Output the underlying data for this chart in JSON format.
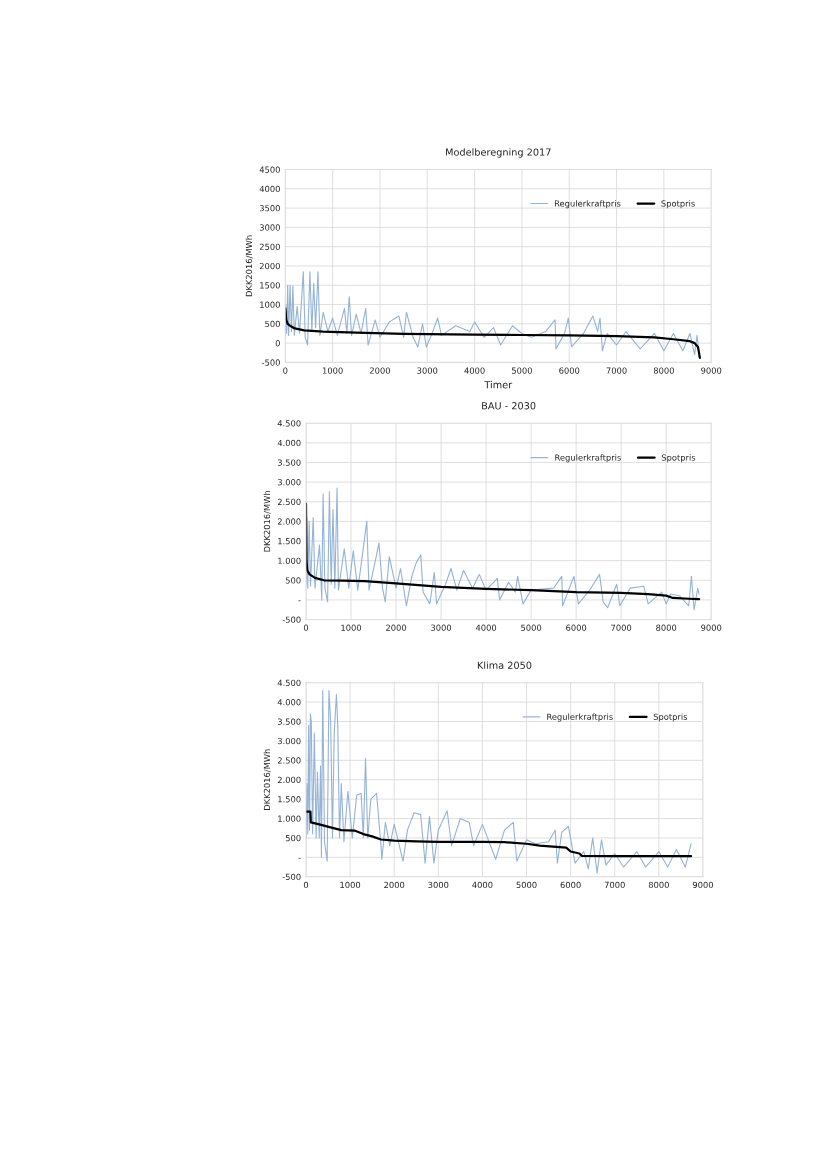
{
  "chart_data": [
    {
      "type": "line",
      "title": "Modelberegning 2017",
      "xlabel": "Timer",
      "ylabel": "DKK2016/MWh",
      "xlim": [
        0,
        9000
      ],
      "xticks": [
        0,
        1000,
        2000,
        3000,
        4000,
        5000,
        6000,
        7000,
        8000,
        9000
      ],
      "ylim": [
        -500,
        4500
      ],
      "yticks": [
        -500,
        0,
        500,
        1000,
        1500,
        2000,
        2500,
        3000,
        3500,
        4000,
        4500
      ],
      "grid": true,
      "legend": "top right",
      "series": [
        {
          "name": "Regulerkraftpris",
          "color": "#95b3d7",
          "x": [
            0,
            10,
            30,
            50,
            70,
            100,
            130,
            160,
            190,
            250,
            300,
            380,
            420,
            470,
            520,
            560,
            600,
            640,
            690,
            730,
            800,
            900,
            1000,
            1100,
            1250,
            1300,
            1350,
            1400,
            1500,
            1600,
            1700,
            1750,
            1900,
            2000,
            2200,
            2400,
            2500,
            2560,
            2700,
            2800,
            2900,
            2980,
            3100,
            3220,
            3300,
            3600,
            3900,
            4000,
            4200,
            4400,
            4550,
            4800,
            5000,
            5200,
            5500,
            5700,
            5720,
            5900,
            5980,
            6050,
            6300,
            6500,
            6600,
            6650,
            6700,
            6800,
            7000,
            7200,
            7500,
            7800,
            8000,
            8200,
            8400,
            8550,
            8650,
            8700,
            8750
          ],
          "values": [
            200,
            1000,
            250,
            1500,
            200,
            1500,
            300,
            1480,
            200,
            950,
            250,
            1850,
            150,
            -50,
            1850,
            300,
            1550,
            400,
            1850,
            200,
            800,
            300,
            650,
            200,
            900,
            250,
            1200,
            200,
            750,
            250,
            900,
            -50,
            600,
            150,
            550,
            700,
            150,
            800,
            150,
            -100,
            500,
            -100,
            250,
            650,
            200,
            450,
            300,
            550,
            150,
            400,
            -50,
            450,
            250,
            150,
            300,
            600,
            -150,
            250,
            650,
            -100,
            250,
            700,
            300,
            650,
            -200,
            250,
            -50,
            300,
            -150,
            250,
            -200,
            250,
            -200,
            250,
            -300,
            200,
            -350
          ]
        },
        {
          "name": "Spotpris",
          "color": "#000000",
          "x": [
            0,
            20,
            50,
            100,
            200,
            400,
            800,
            1500,
            2500,
            4000,
            5000,
            6000,
            7000,
            7800,
            8200,
            8550,
            8650,
            8720,
            8760
          ],
          "values": [
            900,
            600,
            500,
            450,
            380,
            330,
            300,
            270,
            240,
            220,
            210,
            200,
            180,
            150,
            100,
            50,
            0,
            -100,
            -380
          ]
        }
      ]
    },
    {
      "type": "line",
      "title": "BAU - 2030",
      "ylabel": "DKK2016/MWh",
      "xlim": [
        0,
        9000
      ],
      "xticks": [
        0,
        1000,
        2000,
        3000,
        4000,
        5000,
        6000,
        7000,
        8000,
        9000
      ],
      "ylim": [
        -500,
        4500
      ],
      "yticks": [
        -500,
        {
          "value": 0,
          "label": "-"
        },
        500,
        {
          "value": 1000,
          "label": "1.000"
        },
        {
          "value": 1500,
          "label": "1.500"
        },
        {
          "value": 2000,
          "label": "2.000"
        },
        {
          "value": 2500,
          "label": "2.500"
        },
        {
          "value": 3000,
          "label": "3.000"
        },
        {
          "value": 3500,
          "label": "3.500"
        },
        {
          "value": 4000,
          "label": "4.000"
        },
        {
          "value": 4500,
          "label": "4.500"
        }
      ],
      "grid": true,
      "legend": "top right",
      "series": [
        {
          "name": "Regulerkraftpris",
          "color": "#95b3d7",
          "x": [
            0,
            20,
            40,
            70,
            100,
            160,
            200,
            300,
            350,
            380,
            420,
            480,
            520,
            560,
            600,
            640,
            690,
            720,
            850,
            950,
            1050,
            1150,
            1270,
            1350,
            1400,
            1550,
            1620,
            1700,
            1760,
            1850,
            2000,
            2100,
            2230,
            2350,
            2450,
            2550,
            2600,
            2750,
            2850,
            2900,
            3100,
            3220,
            3350,
            3500,
            3700,
            3850,
            4000,
            4250,
            4300,
            4500,
            4650,
            4700,
            4820,
            5000,
            5500,
            5680,
            5700,
            5950,
            6050,
            6300,
            6520,
            6600,
            6700,
            6900,
            6970,
            7200,
            7500,
            7600,
            7900,
            8000,
            8100,
            8300,
            8500,
            8560,
            8620,
            8700,
            8730
          ],
          "values": [
            400,
            2100,
            300,
            2000,
            350,
            2100,
            300,
            1400,
            0,
            2700,
            300,
            -50,
            2750,
            400,
            2300,
            300,
            2850,
            250,
            1300,
            300,
            1250,
            250,
            1300,
            2000,
            250,
            1050,
            1450,
            300,
            -50,
            1100,
            300,
            800,
            -150,
            600,
            950,
            1150,
            200,
            -100,
            700,
            -100,
            400,
            800,
            250,
            750,
            300,
            650,
            250,
            550,
            0,
            450,
            200,
            600,
            -100,
            250,
            300,
            600,
            -150,
            600,
            -100,
            250,
            650,
            -50,
            -200,
            400,
            -150,
            300,
            350,
            -100,
            200,
            -100,
            150,
            100,
            -150,
            600,
            -250,
            300,
            150
          ]
        },
        {
          "name": "Spotpris",
          "color": "#000000",
          "x": [
            0,
            10,
            30,
            80,
            200,
            400,
            800,
            1300,
            2000,
            3000,
            4000,
            5000,
            6000,
            7000,
            7600,
            8000,
            8150,
            8500,
            8730
          ],
          "values": [
            2450,
            1000,
            750,
            650,
            560,
            500,
            490,
            480,
            420,
            330,
            280,
            250,
            200,
            180,
            150,
            110,
            50,
            30,
            20
          ]
        }
      ]
    },
    {
      "type": "line",
      "title": "Klima 2050",
      "ylabel": "DKK2016/MWh",
      "xlim": [
        0,
        9000
      ],
      "xticks": [
        0,
        1000,
        2000,
        3000,
        4000,
        5000,
        6000,
        7000,
        8000,
        9000
      ],
      "ylim": [
        -500,
        4500
      ],
      "yticks": [
        -500,
        {
          "value": 0,
          "label": "-"
        },
        500,
        {
          "value": 1000,
          "label": "1.000"
        },
        {
          "value": 1500,
          "label": "1.500"
        },
        {
          "value": 2000,
          "label": "2.000"
        },
        {
          "value": 2500,
          "label": "2.500"
        },
        {
          "value": 3000,
          "label": "3.000"
        },
        {
          "value": 3500,
          "label": "3.500"
        },
        {
          "value": 4000,
          "label": "4.000"
        },
        {
          "value": 4500,
          "label": "4.500"
        }
      ],
      "grid": true,
      "legend": "top right",
      "series": [
        {
          "name": "Regulerkraftpris",
          "color": "#95b3d7",
          "x": [
            0,
            20,
            40,
            60,
            80,
            100,
            120,
            150,
            190,
            230,
            260,
            300,
            330,
            350,
            380,
            420,
            480,
            520,
            560,
            600,
            640,
            690,
            720,
            760,
            800,
            860,
            950,
            1050,
            1150,
            1250,
            1300,
            1350,
            1400,
            1470,
            1600,
            1700,
            1720,
            1800,
            1900,
            2000,
            2200,
            2300,
            2450,
            2600,
            2700,
            2800,
            2900,
            3000,
            3200,
            3300,
            3500,
            3700,
            3800,
            4000,
            4300,
            4500,
            4700,
            4780,
            5000,
            5200,
            5500,
            5650,
            5700,
            5800,
            5950,
            6100,
            6300,
            6400,
            6500,
            6600,
            6700,
            6800,
            7000,
            7200,
            7500,
            7700,
            8000,
            8200,
            8400,
            8600,
            8730
          ],
          "values": [
            500,
            1900,
            600,
            3400,
            700,
            3700,
            3500,
            600,
            3200,
            500,
            2200,
            500,
            2350,
            0,
            4300,
            400,
            -100,
            4300,
            3500,
            500,
            3200,
            4200,
            3400,
            500,
            1900,
            400,
            1700,
            500,
            1600,
            1650,
            500,
            2550,
            500,
            1500,
            1650,
            300,
            -50,
            900,
            300,
            850,
            -100,
            700,
            1150,
            1100,
            -150,
            1050,
            -150,
            700,
            1200,
            300,
            1000,
            900,
            300,
            850,
            -50,
            700,
            900,
            -100,
            450,
            350,
            400,
            700,
            -150,
            650,
            800,
            -150,
            150,
            -300,
            500,
            -400,
            450,
            -200,
            100,
            -250,
            150,
            -250,
            150,
            -250,
            200,
            -250,
            350
          ]
        },
        {
          "name": "Spotpris",
          "color": "#000000",
          "x": [
            0,
            100,
            110,
            300,
            600,
            800,
            1100,
            1300,
            1500,
            1700,
            2000,
            2500,
            3000,
            4000,
            4500,
            5000,
            5300,
            5900,
            6000,
            6200,
            6250,
            7000,
            8730
          ],
          "values": [
            1180,
            1180,
            900,
            850,
            760,
            700,
            690,
            600,
            540,
            460,
            430,
            410,
            400,
            400,
            390,
            350,
            300,
            250,
            150,
            100,
            40,
            30,
            30
          ]
        }
      ]
    }
  ]
}
